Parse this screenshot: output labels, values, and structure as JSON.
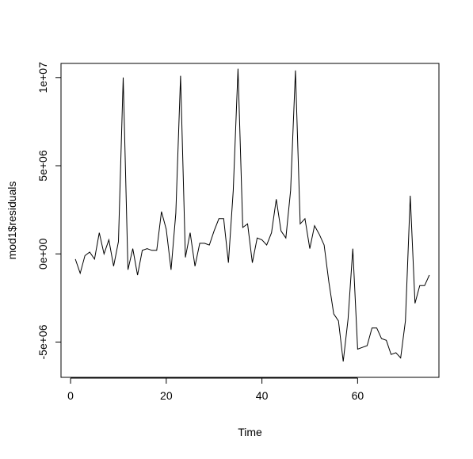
{
  "chart_data": {
    "type": "line",
    "title": "",
    "xlabel": "Time",
    "ylabel": "mod1$residuals",
    "xlim": [
      -2,
      77
    ],
    "ylim": [
      -7000000,
      10800000
    ],
    "grid": false,
    "legend": "none",
    "x_ticks": [
      {
        "value": 0,
        "label": "0"
      },
      {
        "value": 20,
        "label": "20"
      },
      {
        "value": 40,
        "label": "40"
      },
      {
        "value": 60,
        "label": "60"
      }
    ],
    "y_ticks": [
      {
        "value": -5000000,
        "label": "-5e+06"
      },
      {
        "value": 0,
        "label": "0e+00"
      },
      {
        "value": 5000000,
        "label": "5e+06"
      },
      {
        "value": 10000000,
        "label": "1e+07"
      }
    ],
    "x": [
      1,
      2,
      3,
      4,
      5,
      6,
      7,
      8,
      9,
      10,
      11,
      12,
      13,
      14,
      15,
      16,
      17,
      18,
      19,
      20,
      21,
      22,
      23,
      24,
      25,
      26,
      27,
      28,
      29,
      30,
      31,
      32,
      33,
      34,
      35,
      36,
      37,
      38,
      39,
      40,
      41,
      42,
      43,
      44,
      45,
      46,
      47,
      48,
      49,
      50,
      51,
      52,
      53,
      54,
      55,
      56,
      57,
      58,
      59,
      60,
      61,
      62,
      63,
      64,
      65,
      66,
      67,
      68,
      69,
      70,
      71,
      72,
      73,
      74,
      75
    ],
    "series": [
      {
        "color": "#000000",
        "values": [
          -300000,
          -1100000,
          -100000,
          100000,
          -300000,
          1200000,
          0,
          800000,
          -700000,
          700000,
          10000000,
          -900000,
          300000,
          -1200000,
          200000,
          300000,
          200000,
          200000,
          2400000,
          1400000,
          -900000,
          2300000,
          10100000,
          -200000,
          1200000,
          -700000,
          600000,
          600000,
          500000,
          1300000,
          2000000,
          2000000,
          -500000,
          3600000,
          10500000,
          1500000,
          1700000,
          -500000,
          900000,
          800000,
          500000,
          1200000,
          3100000,
          1300000,
          900000,
          3600000,
          10400000,
          1700000,
          2000000,
          300000,
          1600000,
          1100000,
          500000,
          -1600000,
          -3400000,
          -3800000,
          -6100000,
          -3700000,
          300000,
          -5400000,
          -5300000,
          -5200000,
          -4200000,
          -4200000,
          -4800000,
          -4900000,
          -5700000,
          -5600000,
          -5900000,
          -3800000,
          3300000,
          -2800000,
          -1800000,
          -1800000,
          -1200000
        ]
      }
    ]
  }
}
